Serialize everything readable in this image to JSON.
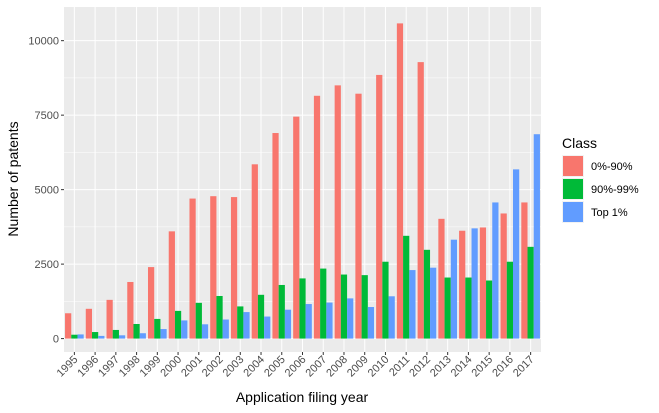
{
  "chart_data": {
    "type": "bar",
    "xlabel": "Application filing year",
    "ylabel": "Number of patents",
    "ylim": [
      -450,
      11130
    ],
    "yticks": [
      0,
      2500,
      5000,
      7500,
      10000
    ],
    "ytick_labels": [
      "0",
      "2500",
      "5000",
      "7500",
      "10000"
    ],
    "grid": true,
    "legend_position": "right",
    "legend_title": "Class",
    "categories": [
      "1995",
      "1996",
      "1997",
      "1998",
      "1999",
      "2000",
      "2001",
      "2002",
      "2003",
      "2004",
      "2005",
      "2006",
      "2007",
      "2008",
      "2009",
      "2010",
      "2011",
      "2012",
      "2013",
      "2014",
      "2015",
      "2016",
      "2017"
    ],
    "series": [
      {
        "name": "0%-90%",
        "color": "#F8766D",
        "values": [
          850,
          1000,
          1300,
          1900,
          2400,
          3600,
          4700,
          4780,
          4750,
          5850,
          6900,
          7450,
          8150,
          8500,
          8220,
          8850,
          10580,
          9280,
          4020,
          3620,
          3730,
          4200,
          4570
        ]
      },
      {
        "name": "90%-99%",
        "color": "#00BA38",
        "values": [
          130,
          220,
          290,
          490,
          660,
          930,
          1200,
          1430,
          1080,
          1470,
          1800,
          2020,
          2350,
          2150,
          2130,
          2580,
          3450,
          2980,
          2050,
          2050,
          1950,
          2580,
          3080
        ]
      },
      {
        "name": "Top 1%",
        "color": "#619CFF",
        "values": [
          140,
          90,
          110,
          180,
          320,
          610,
          480,
          640,
          890,
          740,
          970,
          1160,
          1210,
          1350,
          1060,
          1420,
          2300,
          2380,
          3320,
          3700,
          4570,
          5680,
          6860
        ]
      }
    ]
  }
}
